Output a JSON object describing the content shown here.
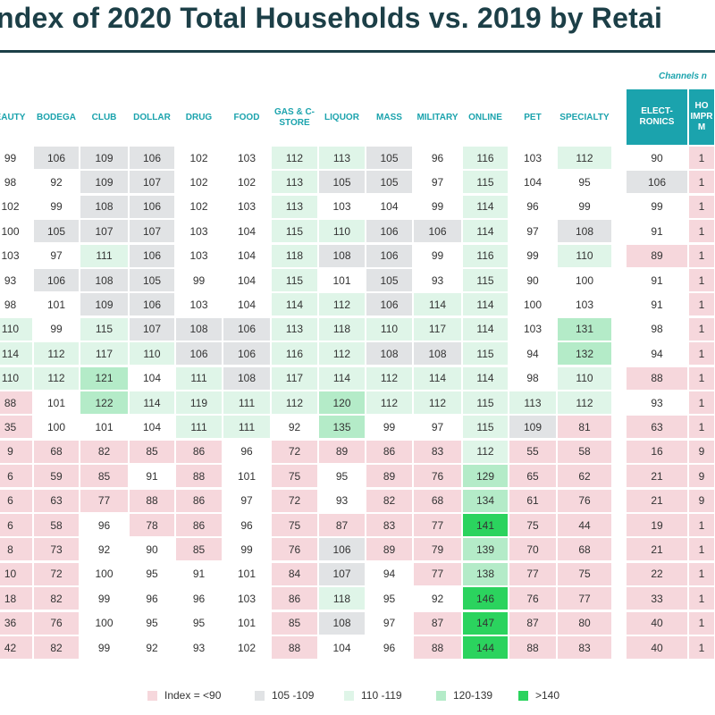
{
  "title": "ndex of 2020 Total Households  vs. 2019 by Retai",
  "note": "Channels n",
  "colors": {
    "title": "#1c3f47",
    "accent": "#1ba3ad",
    "lt90": "#f6d7dc",
    "r105": "#e1e3e5",
    "r110": "#dff5e8",
    "r120": "#b4ebc8",
    "gt140": "#2bd35e"
  },
  "chart_data": {
    "type": "table",
    "columns": [
      "EAUTY",
      "BODEGA",
      "CLUB",
      "DOLLAR",
      "DRUG",
      "FOOD",
      "GAS & C-STORE",
      "LIQUOR",
      "MASS",
      "MILITARY",
      "ONLINE",
      "PET",
      "SPECIALTY",
      "ELECT- RONICS",
      "HO IMPR M"
    ],
    "header_boxes": [
      "ELECT- RONICS",
      "HO IMPR M"
    ],
    "rows": [
      [
        99,
        106,
        109,
        106,
        102,
        103,
        112,
        113,
        105,
        96,
        116,
        103,
        112,
        90,
        1
      ],
      [
        98,
        92,
        109,
        107,
        102,
        102,
        113,
        105,
        105,
        97,
        115,
        104,
        95,
        106,
        1
      ],
      [
        102,
        99,
        108,
        106,
        102,
        103,
        113,
        103,
        104,
        99,
        114,
        96,
        99,
        99,
        1
      ],
      [
        100,
        105,
        107,
        107,
        103,
        104,
        115,
        110,
        106,
        106,
        114,
        97,
        108,
        91,
        1
      ],
      [
        103,
        97,
        111,
        106,
        103,
        104,
        118,
        108,
        106,
        99,
        116,
        99,
        110,
        89,
        1
      ],
      [
        93,
        106,
        108,
        105,
        99,
        104,
        115,
        101,
        105,
        93,
        115,
        90,
        100,
        91,
        1
      ],
      [
        98,
        101,
        109,
        106,
        103,
        104,
        114,
        112,
        106,
        114,
        114,
        100,
        103,
        91,
        1
      ],
      [
        110,
        99,
        115,
        107,
        108,
        106,
        113,
        118,
        110,
        117,
        114,
        103,
        131,
        98,
        1
      ],
      [
        114,
        112,
        117,
        110,
        106,
        106,
        116,
        112,
        108,
        108,
        115,
        94,
        132,
        94,
        1
      ],
      [
        110,
        112,
        121,
        104,
        111,
        108,
        117,
        114,
        112,
        114,
        114,
        98,
        110,
        88,
        1
      ],
      [
        88,
        101,
        122,
        114,
        119,
        111,
        112,
        120,
        112,
        112,
        115,
        113,
        112,
        93,
        1
      ],
      [
        35,
        100,
        101,
        104,
        111,
        111,
        92,
        135,
        99,
        97,
        115,
        109,
        81,
        63,
        1
      ],
      [
        9,
        68,
        82,
        85,
        86,
        96,
        72,
        89,
        86,
        83,
        112,
        55,
        58,
        16,
        9
      ],
      [
        6,
        59,
        85,
        91,
        88,
        101,
        75,
        95,
        89,
        76,
        129,
        65,
        62,
        21,
        9
      ],
      [
        6,
        63,
        77,
        88,
        86,
        97,
        72,
        93,
        82,
        68,
        134,
        61,
        76,
        21,
        9
      ],
      [
        6,
        58,
        96,
        78,
        86,
        96,
        75,
        87,
        83,
        77,
        141,
        75,
        44,
        19,
        1
      ],
      [
        8,
        73,
        92,
        90,
        85,
        99,
        76,
        106,
        89,
        79,
        139,
        70,
        68,
        21,
        1
      ],
      [
        10,
        72,
        100,
        95,
        91,
        101,
        84,
        107,
        94,
        77,
        138,
        77,
        75,
        22,
        1
      ],
      [
        18,
        82,
        99,
        96,
        96,
        103,
        86,
        118,
        95,
        92,
        146,
        76,
        77,
        33,
        1
      ],
      [
        36,
        76,
        100,
        95,
        95,
        101,
        85,
        108,
        97,
        87,
        147,
        87,
        80,
        40,
        1
      ],
      [
        42,
        82,
        99,
        92,
        93,
        102,
        88,
        104,
        96,
        88,
        144,
        88,
        83,
        40,
        1
      ]
    ],
    "legend": [
      {
        "label": "Index = <90",
        "color_key": "lt90"
      },
      {
        "label": "105 -109",
        "color_key": "r105"
      },
      {
        "label": "110 -119",
        "color_key": "r110"
      },
      {
        "label": "120-139",
        "color_key": "r120"
      },
      {
        "label": ">140",
        "color_key": "gt140"
      }
    ]
  }
}
